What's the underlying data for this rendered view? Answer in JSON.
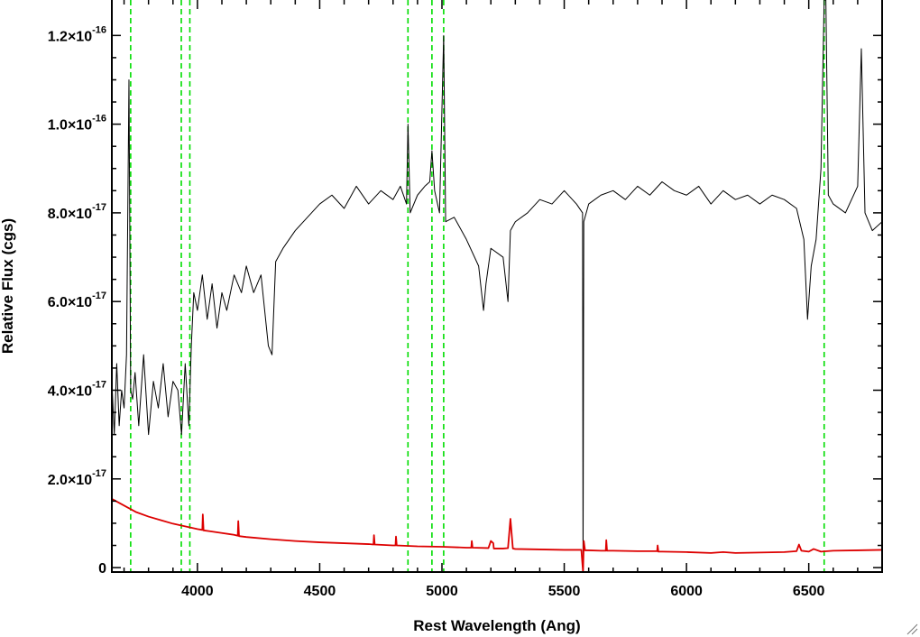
{
  "chart_data": {
    "type": "line",
    "xlabel": "Rest Wavelength (Ang)",
    "ylabel": "Relative Flux (cgs)",
    "xlim": [
      3650,
      6800
    ],
    "ylim": [
      -1e-18,
      1.28e-16
    ],
    "x_ticks": [
      {
        "value": 4000,
        "label": "4000"
      },
      {
        "value": 4500,
        "label": "4500"
      },
      {
        "value": 5000,
        "label": "5000"
      },
      {
        "value": 5500,
        "label": "5500"
      },
      {
        "value": 6000,
        "label": "6000"
      },
      {
        "value": 6500,
        "label": "6500"
      }
    ],
    "y_ticks": [
      {
        "value": 0,
        "mant": "0",
        "exp": ""
      },
      {
        "value": 2e-17,
        "mant": "2.0×10",
        "exp": "-17"
      },
      {
        "value": 4e-17,
        "mant": "4.0×10",
        "exp": "-17"
      },
      {
        "value": 6e-17,
        "mant": "6.0×10",
        "exp": "-17"
      },
      {
        "value": 8e-17,
        "mant": "8.0×10",
        "exp": "-17"
      },
      {
        "value": 1e-16,
        "mant": "1.0×10",
        "exp": "-16"
      },
      {
        "value": 1.2e-16,
        "mant": "1.2×10",
        "exp": "-16"
      }
    ],
    "reference_lines": [
      3727,
      3934,
      3969,
      4861,
      4959,
      5007,
      6563
    ],
    "series": [
      {
        "color": "#000000",
        "style": "line",
        "x": [
          3650,
          3660,
          3670,
          3680,
          3690,
          3700,
          3710,
          3720,
          3727,
          3735,
          3745,
          3760,
          3780,
          3800,
          3820,
          3840,
          3860,
          3880,
          3900,
          3920,
          3935,
          3950,
          3965,
          3975,
          3985,
          4000,
          4020,
          4040,
          4060,
          4080,
          4100,
          4120,
          4150,
          4180,
          4200,
          4230,
          4260,
          4290,
          4305,
          4320,
          4350,
          4400,
          4450,
          4500,
          4550,
          4600,
          4650,
          4700,
          4750,
          4800,
          4830,
          4855,
          4861,
          4870,
          4900,
          4930,
          4950,
          4959,
          4970,
          4990,
          5007,
          5015,
          5050,
          5100,
          5150,
          5170,
          5180,
          5200,
          5250,
          5270,
          5280,
          5300,
          5350,
          5400,
          5450,
          5500,
          5550,
          5575,
          5577,
          5580,
          5600,
          5650,
          5700,
          5750,
          5800,
          5850,
          5900,
          5950,
          6000,
          6050,
          6100,
          6150,
          6200,
          6250,
          6300,
          6350,
          6400,
          6450,
          6480,
          6495,
          6510,
          6530,
          6550,
          6563,
          6570,
          6580,
          6600,
          6650,
          6700,
          6715,
          6730,
          6760,
          6800
        ],
        "values": [
          4.2e-17,
          3e-17,
          4.6e-17,
          3.2e-17,
          4e-17,
          3.6e-17,
          4.8e-17,
          1.1e-16,
          4e-17,
          3.8e-17,
          4.4e-17,
          3.2e-17,
          4.8e-17,
          3e-17,
          4.2e-17,
          3.6e-17,
          4.6e-17,
          3.4e-17,
          4.2e-17,
          4e-17,
          3e-17,
          4.6e-17,
          3.2e-17,
          5e-17,
          6.2e-17,
          5.8e-17,
          6.6e-17,
          5.6e-17,
          6.4e-17,
          5.4e-17,
          6.2e-17,
          5.8e-17,
          6.6e-17,
          6.2e-17,
          6.8e-17,
          6.2e-17,
          6.6e-17,
          5e-17,
          4.8e-17,
          6.9e-17,
          7.2e-17,
          7.6e-17,
          7.9e-17,
          8.2e-17,
          8.4e-17,
          8.1e-17,
          8.6e-17,
          8.2e-17,
          8.5e-17,
          8.3e-17,
          8.6e-17,
          8.2e-17,
          1e-16,
          8e-17,
          8.4e-17,
          8.6e-17,
          8.7e-17,
          9.4e-17,
          8.5e-17,
          8e-17,
          1.2e-16,
          7.8e-17,
          7.9e-17,
          7.4e-17,
          6.8e-17,
          5.8e-17,
          6.4e-17,
          7.2e-17,
          7e-17,
          6e-17,
          7.6e-17,
          7.8e-17,
          8e-17,
          8.3e-17,
          8.2e-17,
          8.5e-17,
          8.2e-17,
          8e-17,
          -1e-18,
          7.8e-17,
          8.2e-17,
          8.4e-17,
          8.5e-17,
          8.3e-17,
          8.6e-17,
          8.4e-17,
          8.7e-17,
          8.5e-17,
          8.4e-17,
          8.6e-17,
          8.2e-17,
          8.5e-17,
          8.3e-17,
          8.4e-17,
          8.2e-17,
          8.4e-17,
          8.3e-17,
          8.1e-17,
          7.4e-17,
          5.6e-17,
          6.8e-17,
          7.4e-17,
          9e-17,
          1.28e-16,
          1.28e-16,
          8.4e-17,
          8.2e-17,
          8e-17,
          8.6e-17,
          1.17e-16,
          8e-17,
          7.6e-17,
          7.8e-17
        ]
      },
      {
        "color": "#dd0000",
        "style": "line",
        "x": [
          3650,
          3700,
          3750,
          3800,
          3850,
          3900,
          3950,
          4000,
          4020,
          4022,
          4025,
          4050,
          4100,
          4150,
          4165,
          4167,
          4170,
          4200,
          4300,
          4400,
          4500,
          4600,
          4700,
          4720,
          4722,
          4725,
          4800,
          4810,
          4812,
          4815,
          4900,
          5000,
          5100,
          5120,
          5122,
          5125,
          5190,
          5200,
          5210,
          5212,
          5250,
          5270,
          5280,
          5290,
          5300,
          5400,
          5500,
          5570,
          5577,
          5580,
          5585,
          5600,
          5650,
          5670,
          5672,
          5675,
          5700,
          5800,
          5880,
          5882,
          5885,
          5900,
          6000,
          6100,
          6150,
          6200,
          6300,
          6400,
          6450,
          6460,
          6470,
          6500,
          6520,
          6550,
          6600,
          6700,
          6800
        ],
        "values": [
          1.55e-17,
          1.4e-17,
          1.25e-17,
          1.15e-17,
          1.07e-17,
          9.9e-18,
          9.3e-18,
          8.7e-18,
          8.5e-18,
          1.2e-17,
          8.4e-18,
          8.2e-18,
          7.8e-18,
          7.4e-18,
          7.2e-18,
          1.05e-17,
          7.1e-18,
          6.9e-18,
          6.4e-18,
          6e-18,
          5.7e-18,
          5.5e-18,
          5.3e-18,
          5.2e-18,
          7.3e-18,
          5.2e-18,
          5e-18,
          5e-18,
          7e-18,
          5e-18,
          4.8e-18,
          4.7e-18,
          4.5e-18,
          4.5e-18,
          6e-18,
          4.5e-18,
          4.4e-18,
          6e-18,
          5.5e-18,
          4.3e-18,
          4.3e-18,
          4.4e-18,
          1.1e-17,
          4.3e-18,
          4.2e-18,
          4.1e-18,
          4e-18,
          4e-18,
          -1e-18,
          6e-18,
          3.9e-18,
          3.9e-18,
          3.8e-18,
          3.8e-18,
          6.2e-18,
          3.8e-18,
          3.8e-18,
          3.7e-18,
          3.7e-18,
          5e-18,
          3.6e-18,
          3.6e-18,
          3.5e-18,
          3.3e-18,
          3.5e-18,
          3.3e-18,
          3.4e-18,
          3.5e-18,
          3.7e-18,
          5.2e-18,
          3.8e-18,
          3.6e-18,
          4.2e-18,
          3.6e-18,
          3.8e-18,
          3.9e-18,
          4e-18
        ]
      }
    ]
  },
  "colors": {
    "reference_line": "#00dd00",
    "axis": "#000000",
    "background": "#ffffff"
  },
  "resize_grip_icon": "resize-grip-icon"
}
